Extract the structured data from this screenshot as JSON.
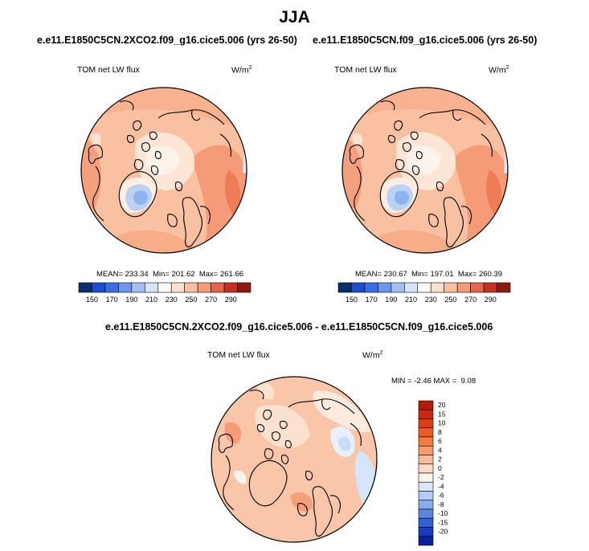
{
  "title": "JJA",
  "panels": [
    {
      "heading": "e.e11.E1850C5CN.2XCO2.f09_g16.cice5.006 (yrs 26-50)",
      "variable": "TOM net LW flux",
      "units": "W/m",
      "units_exp": "2",
      "stats": {
        "mean_label": "MEAN=",
        "mean": "233.34",
        "min_label": "Min=",
        "min": "201.62",
        "max_label": "Max=",
        "max": "261.66"
      }
    },
    {
      "heading": "e.e11.E1850C5CN.f09_g16.cice5.006 (yrs 26-50)",
      "variable": "TOM net LW flux",
      "units": "W/m",
      "units_exp": "2",
      "stats": {
        "mean_label": "MEAN=",
        "mean": "230.67",
        "min_label": "Min=",
        "min": "197.01",
        "max_label": "Max=",
        "max": "260.39"
      }
    }
  ],
  "diff_panel": {
    "heading": "e.e11.E1850C5CN.2XCO2.f09_g16.cice5.006 - e.e11.E1850C5CN.f09_g16.cice5.006",
    "variable": "TOM net LW flux",
    "units": "W/m",
    "units_exp": "2",
    "stats": {
      "min_label": "MIN =",
      "min": "-2.46",
      "max_label": "MAX =",
      "max": "9.08"
    }
  },
  "chart_data": [
    {
      "type": "heatmap",
      "projection": "north polar stereographic",
      "title": "e.e11.E1850C5CN.2XCO2.f09_g16.cice5.006 (yrs 26-50)",
      "variable": "TOM net LW flux",
      "units": "W/m2",
      "mean": 233.34,
      "min": 201.62,
      "max": 261.66,
      "colorbar_levels": [
        150,
        170,
        190,
        210,
        230,
        250,
        270,
        290
      ],
      "colorbar_labels": [
        "150",
        "170",
        "190",
        "210",
        "230",
        "250",
        "270",
        "290"
      ],
      "colorbar_colors": [
        "#08306b",
        "#1d4fd1",
        "#3b6fe0",
        "#6d97ea",
        "#a3c0f2",
        "#d6e4fa",
        "#fdfbf7",
        "#fde1cf",
        "#f9c0a2",
        "#f59b77",
        "#e5664b",
        "#c63021",
        "#8c1a0e"
      ]
    },
    {
      "type": "heatmap",
      "projection": "north polar stereographic",
      "title": "e.e11.E1850C5CN.f09_g16.cice5.006 (yrs 26-50)",
      "variable": "TOM net LW flux",
      "units": "W/m2",
      "mean": 230.67,
      "min": 197.01,
      "max": 260.39,
      "colorbar_levels": [
        150,
        170,
        190,
        210,
        230,
        250,
        270,
        290
      ],
      "colorbar_labels": [
        "150",
        "170",
        "190",
        "210",
        "230",
        "250",
        "270",
        "290"
      ],
      "colorbar_colors": [
        "#08306b",
        "#1d4fd1",
        "#3b6fe0",
        "#6d97ea",
        "#a3c0f2",
        "#d6e4fa",
        "#fdfbf7",
        "#fde1cf",
        "#f9c0a2",
        "#f59b77",
        "#e5664b",
        "#c63021",
        "#8c1a0e"
      ]
    },
    {
      "type": "heatmap",
      "projection": "north polar stereographic",
      "title": "e.e11.E1850C5CN.2XCO2.f09_g16.cice5.006 - e.e11.E1850C5CN.f09_g16.cice5.006",
      "variable": "TOM net LW flux",
      "units": "W/m2",
      "min": -2.46,
      "max": 9.08,
      "colorbar_levels": [
        20,
        15,
        10,
        8,
        6,
        4,
        2,
        0,
        -2,
        -4,
        -6,
        -8,
        -10,
        -15,
        -20
      ],
      "colorbar_labels": [
        "20",
        "15",
        "10",
        "8",
        "6",
        "4",
        "2",
        "0",
        "-2",
        "-4",
        "-6",
        "-8",
        "-10",
        "-15",
        "-20"
      ],
      "colorbar_colors": [
        "#b01c08",
        "#c92a0e",
        "#de3d12",
        "#ef5b24",
        "#f57c45",
        "#f89c70",
        "#f9bb9b",
        "#fbd9c6",
        "#fdf3ea",
        "#dbe8fa",
        "#b2cdf2",
        "#86ade8",
        "#5b86dc",
        "#3560d0",
        "#1a3bbf",
        "#0a1f9c"
      ]
    }
  ]
}
